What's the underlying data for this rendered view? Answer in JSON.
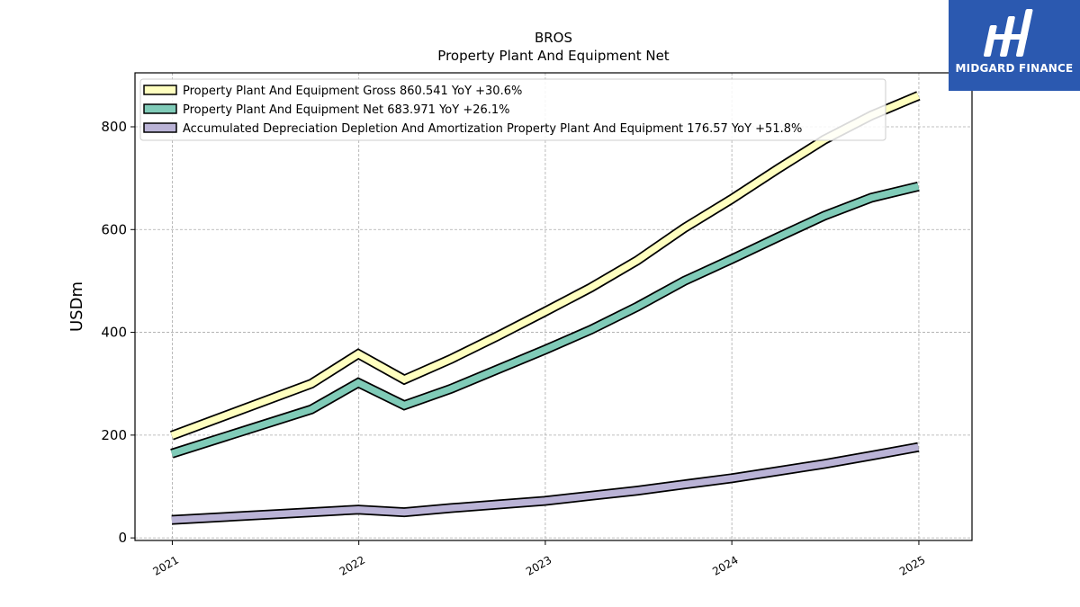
{
  "header": {
    "title": "BROS",
    "subtitle": "Property Plant And Equipment Net"
  },
  "logo": {
    "text": "MIDGARD FINANCE",
    "background": "#2b59b0"
  },
  "chart_data": {
    "type": "line",
    "title": "BROS",
    "subtitle": "Property Plant And Equipment Net",
    "xlabel": "",
    "ylabel": "USDm",
    "x_ticks": [
      "2021",
      "2022",
      "2023",
      "2024",
      "2025"
    ],
    "y_ticks": [
      0,
      200,
      400,
      600,
      800
    ],
    "xlim": [
      "2020-10-20",
      "2025-04-15"
    ],
    "ylim": [
      -5,
      905
    ],
    "grid": true,
    "legend_position": "top-left",
    "series": [
      {
        "name": "Property Plant And Equipment Gross",
        "legend_label": "Property Plant And Equipment Gross  860.541 YoY +30.6%",
        "color": "#ffffbf",
        "x": [
          "2020-12-31",
          "2021-09-30",
          "2021-12-31",
          "2022-03-31",
          "2022-06-30",
          "2022-09-30",
          "2022-12-31",
          "2023-03-31",
          "2023-06-30",
          "2023-09-30",
          "2023-12-31",
          "2024-03-31",
          "2024-06-30",
          "2024-09-30",
          "2024-12-31"
        ],
        "values": [
          199,
          300,
          358,
          308,
          348,
          393,
          440,
          487,
          540,
          603,
          659,
          718,
          775,
          822,
          860.541
        ]
      },
      {
        "name": "Property Plant And Equipment Net",
        "legend_label": "Property Plant And Equipment Net  683.971 YoY +26.1%",
        "color": "#80cbb8",
        "x": [
          "2020-12-31",
          "2021-09-30",
          "2021-12-31",
          "2022-03-31",
          "2022-06-30",
          "2022-09-30",
          "2022-12-31",
          "2023-03-31",
          "2023-06-30",
          "2023-09-30",
          "2023-12-31",
          "2024-03-31",
          "2024-06-30",
          "2024-09-30",
          "2024-12-31"
        ],
        "values": [
          164,
          250,
          302,
          258,
          290,
          328,
          366,
          405,
          450,
          500,
          542,
          585,
          627,
          662,
          683.971
        ]
      },
      {
        "name": "Accumulated Depreciation Depletion And Amortization Property Plant And Equipment",
        "legend_label": "Accumulated Depreciation Depletion And Amortization Property Plant And Equipment  176.57 YoY +51.8%",
        "color": "#bab3d6",
        "x": [
          "2020-12-31",
          "2021-09-30",
          "2021-12-31",
          "2022-03-31",
          "2022-06-30",
          "2022-09-30",
          "2022-12-31",
          "2023-03-31",
          "2023-06-30",
          "2023-09-30",
          "2023-12-31",
          "2024-03-31",
          "2024-06-30",
          "2024-09-30",
          "2024-12-31"
        ],
        "values": [
          35,
          50,
          55,
          50,
          58,
          65,
          72,
          82,
          92,
          104,
          116,
          130,
          144,
          160,
          176.57
        ]
      }
    ]
  }
}
